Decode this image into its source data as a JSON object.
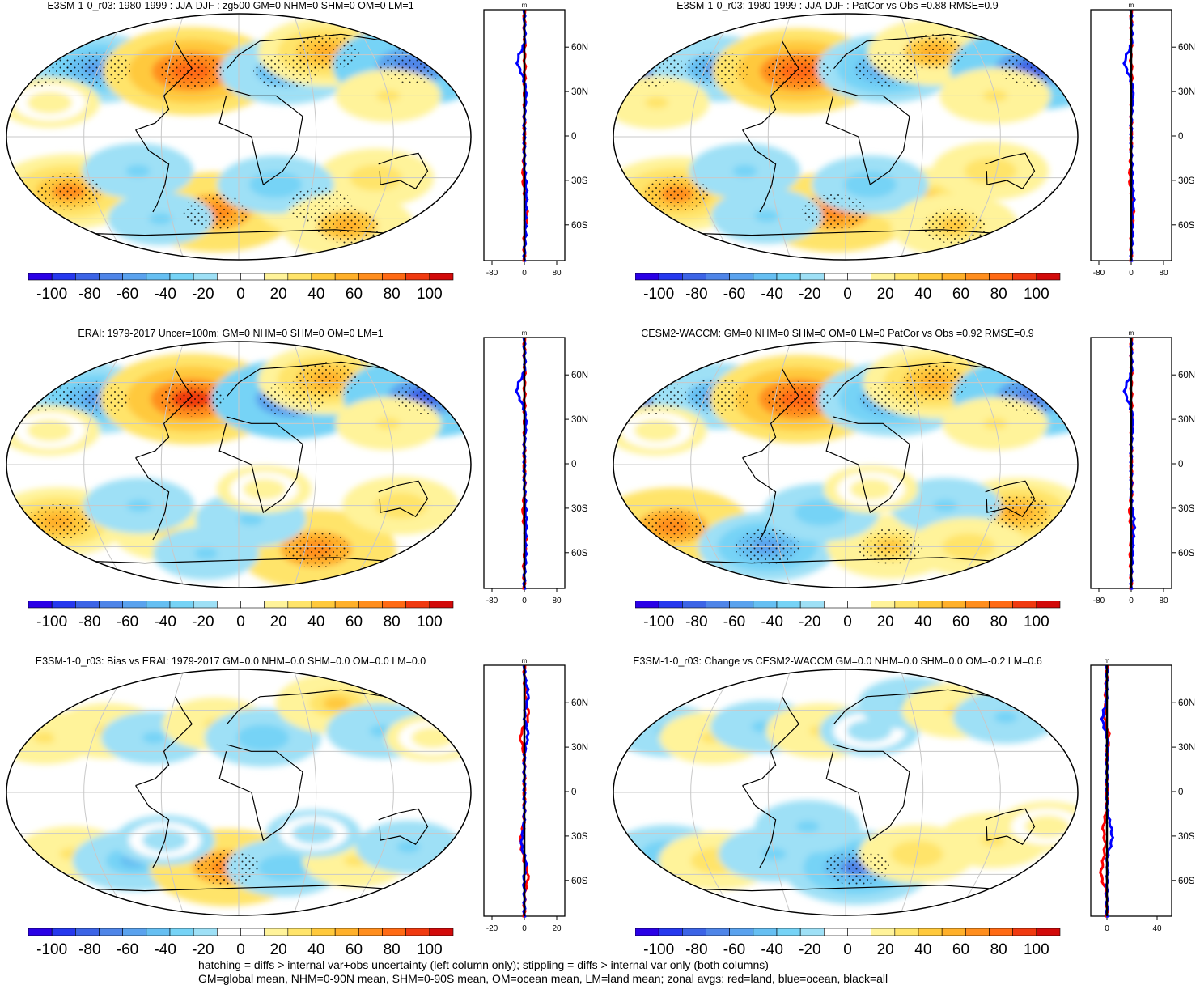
{
  "panels": [
    {
      "title": "E3SM-1-0_r03: 1980-1999 : JJA-DJF : zg500 GM=0 NHM=0 SHM=0 OM=0 LM=1",
      "zonal_xticks": [
        "-80",
        "0",
        "80"
      ],
      "blobs": [
        {
          "lon": -170,
          "lat": 50,
          "v": -90
        },
        {
          "lon": -120,
          "lat": 50,
          "v": -60
        },
        {
          "lon": -40,
          "lat": 48,
          "v": 95
        },
        {
          "lon": 40,
          "lat": 48,
          "v": -55
        },
        {
          "lon": 80,
          "lat": 62,
          "v": 60
        },
        {
          "lon": 150,
          "lat": 52,
          "v": -80
        },
        {
          "lon": 120,
          "lat": 30,
          "v": 30
        },
        {
          "lon": -150,
          "lat": 25,
          "v": 25
        },
        {
          "lon": -140,
          "lat": -40,
          "v": 70
        },
        {
          "lon": -20,
          "lat": -55,
          "v": 80
        },
        {
          "lon": 70,
          "lat": -50,
          "v": 50
        },
        {
          "lon": 110,
          "lat": -30,
          "v": 40
        },
        {
          "lon": -80,
          "lat": -25,
          "v": -35
        },
        {
          "lon": 30,
          "lat": -35,
          "v": -40
        },
        {
          "lon": 100,
          "lat": -65,
          "v": 55
        },
        {
          "lon": -70,
          "lat": -60,
          "v": -30
        }
      ]
    },
    {
      "title": "E3SM-1-0_r03: 1980-1999 : JJA-DJF : PatCor vs Obs =0.88 RMSE=0.9",
      "zonal_xticks": [
        "-80",
        "0",
        "80"
      ],
      "blobs": [
        {
          "lon": -165,
          "lat": 50,
          "v": -80
        },
        {
          "lon": -110,
          "lat": 50,
          "v": -55
        },
        {
          "lon": -40,
          "lat": 48,
          "v": 90
        },
        {
          "lon": 35,
          "lat": 50,
          "v": -60
        },
        {
          "lon": 80,
          "lat": 62,
          "v": 55
        },
        {
          "lon": 160,
          "lat": 50,
          "v": -85
        },
        {
          "lon": 120,
          "lat": 30,
          "v": 35
        },
        {
          "lon": -150,
          "lat": 25,
          "v": 30
        },
        {
          "lon": -140,
          "lat": -42,
          "v": 70
        },
        {
          "lon": -10,
          "lat": -55,
          "v": 80
        },
        {
          "lon": 70,
          "lat": -45,
          "v": 45
        },
        {
          "lon": 115,
          "lat": -25,
          "v": 40
        },
        {
          "lon": -80,
          "lat": -25,
          "v": -35
        },
        {
          "lon": 20,
          "lat": -35,
          "v": -40
        },
        {
          "lon": 100,
          "lat": -65,
          "v": 50
        },
        {
          "lon": -70,
          "lat": -58,
          "v": -35
        }
      ]
    },
    {
      "title": "ERAI: 1979-2017 Uncer=100m: GM=0 NHM=0 SHM=0 OM=0 LM=1",
      "zonal_xticks": [
        "-80",
        "0",
        "80"
      ],
      "blobs": [
        {
          "lon": -170,
          "lat": 52,
          "v": -95
        },
        {
          "lon": -120,
          "lat": 48,
          "v": -60
        },
        {
          "lon": -40,
          "lat": 48,
          "v": 100
        },
        {
          "lon": 45,
          "lat": 48,
          "v": -80
        },
        {
          "lon": 80,
          "lat": 62,
          "v": 60
        },
        {
          "lon": 160,
          "lat": 50,
          "v": -85
        },
        {
          "lon": 120,
          "lat": 30,
          "v": 30
        },
        {
          "lon": -150,
          "lat": 25,
          "v": 25
        },
        {
          "lon": -150,
          "lat": -42,
          "v": 60
        },
        {
          "lon": -60,
          "lat": -50,
          "v": 35
        },
        {
          "lon": 70,
          "lat": -62,
          "v": 80
        },
        {
          "lon": 130,
          "lat": -30,
          "v": 40
        },
        {
          "lon": -80,
          "lat": -30,
          "v": -35
        },
        {
          "lon": 10,
          "lat": -40,
          "v": -35
        },
        {
          "lon": -30,
          "lat": -65,
          "v": -30
        },
        {
          "lon": 20,
          "lat": -18,
          "v": 20
        }
      ]
    },
    {
      "title": "CESM2-WACCM: GM=0 NHM=0 SHM=0 OM=0 LM=0 PatCor vs Obs =0.92 RMSE=0.9",
      "zonal_xticks": [
        "-80",
        "0",
        "80"
      ],
      "blobs": [
        {
          "lon": -165,
          "lat": 50,
          "v": -80
        },
        {
          "lon": -110,
          "lat": 50,
          "v": -55
        },
        {
          "lon": -40,
          "lat": 48,
          "v": 95
        },
        {
          "lon": 40,
          "lat": 48,
          "v": -70
        },
        {
          "lon": 80,
          "lat": 60,
          "v": 65
        },
        {
          "lon": 160,
          "lat": 50,
          "v": -80
        },
        {
          "lon": 120,
          "lat": 30,
          "v": 30
        },
        {
          "lon": -150,
          "lat": 25,
          "v": 25
        },
        {
          "lon": -145,
          "lat": -45,
          "v": 75
        },
        {
          "lon": -70,
          "lat": -60,
          "v": -60
        },
        {
          "lon": 40,
          "lat": -60,
          "v": 50
        },
        {
          "lon": 140,
          "lat": -35,
          "v": 60
        },
        {
          "lon": -20,
          "lat": -35,
          "v": -40
        },
        {
          "lon": 80,
          "lat": -30,
          "v": -35
        },
        {
          "lon": 110,
          "lat": -60,
          "v": 40
        },
        {
          "lon": 20,
          "lat": -18,
          "v": 20
        }
      ]
    },
    {
      "title": "E3SM-1-0_r03: Bias vs ERAI: 1979-2017 GM=0.0 NHM=0.0 SHM=0.0 OM=0.0 LM=0.0",
      "zonal_xticks": [
        "-20",
        "0",
        "20"
      ],
      "blobs": [
        {
          "lon": -160,
          "lat": 40,
          "v": 30
        },
        {
          "lon": -110,
          "lat": 45,
          "v": 35
        },
        {
          "lon": -70,
          "lat": 40,
          "v": -30
        },
        {
          "lon": -20,
          "lat": 50,
          "v": 30
        },
        {
          "lon": 20,
          "lat": 40,
          "v": -40
        },
        {
          "lon": 90,
          "lat": 65,
          "v": 45
        },
        {
          "lon": 120,
          "lat": 45,
          "v": -35
        },
        {
          "lon": 160,
          "lat": 40,
          "v": 20
        },
        {
          "lon": -140,
          "lat": -45,
          "v": 35
        },
        {
          "lon": -90,
          "lat": -50,
          "v": -45
        },
        {
          "lon": -10,
          "lat": -55,
          "v": 75
        },
        {
          "lon": 40,
          "lat": -55,
          "v": -40
        },
        {
          "lon": 100,
          "lat": -50,
          "v": 30
        },
        {
          "lon": 140,
          "lat": -40,
          "v": -30
        },
        {
          "lon": -60,
          "lat": -35,
          "v": -25
        },
        {
          "lon": 60,
          "lat": -30,
          "v": -20
        }
      ]
    },
    {
      "title": "E3SM-1-0_r03: Change vs CESM2-WACCM GM=0.0 NHM=0.0 SHM=0.0 OM=-0.2 LM=0.6",
      "zonal_xticks": [
        "0",
        "40"
      ],
      "blobs": [
        {
          "lon": -150,
          "lat": 45,
          "v": -30
        },
        {
          "lon": -110,
          "lat": 40,
          "v": 30
        },
        {
          "lon": -70,
          "lat": 48,
          "v": -30
        },
        {
          "lon": -20,
          "lat": 45,
          "v": 35
        },
        {
          "lon": 20,
          "lat": 45,
          "v": -25
        },
        {
          "lon": 60,
          "lat": 65,
          "v": -30
        },
        {
          "lon": 100,
          "lat": 60,
          "v": 35
        },
        {
          "lon": 140,
          "lat": 55,
          "v": -30
        },
        {
          "lon": -150,
          "lat": -45,
          "v": -40
        },
        {
          "lon": -110,
          "lat": -50,
          "v": 40
        },
        {
          "lon": -60,
          "lat": -45,
          "v": -35
        },
        {
          "lon": 10,
          "lat": -55,
          "v": -70
        },
        {
          "lon": 60,
          "lat": -45,
          "v": 40
        },
        {
          "lon": 120,
          "lat": -35,
          "v": 35
        },
        {
          "lon": -30,
          "lat": -25,
          "v": -30
        },
        {
          "lon": 160,
          "lat": -25,
          "v": 25
        }
      ]
    }
  ],
  "colorbar": {
    "colors": [
      "#2a00e6",
      "#2638ee",
      "#3c64e6",
      "#4f85e8",
      "#5aa2ee",
      "#66bff2",
      "#76d3f6",
      "#9ee0f6",
      "#ffffff",
      "#ffffff",
      "#fff39a",
      "#ffe46a",
      "#ffc93c",
      "#ffb02a",
      "#ff8e1e",
      "#ff6a14",
      "#f03a10",
      "#d20a0a"
    ],
    "labels": [
      "-100",
      "-80",
      "-60",
      "-40",
      "-20",
      "0",
      "20",
      "40",
      "60",
      "80",
      "100"
    ]
  },
  "zonal_ylabels": [
    "60N",
    "30N",
    "0",
    "30S",
    "60S"
  ],
  "zonal_unit": "m",
  "footer": {
    "line1": "hatching = diffs > internal var+obs uncertainty (left column only); stippling = diffs > internal var only (both columns)",
    "line2": "GM=global mean, NHM=0-90N mean, SHM=0-90S mean, OM=ocean mean, LM=land mean; zonal avgs: red=land, blue=ocean, black=all"
  },
  "chart_data": [
    {
      "type": "heatmap",
      "title": "E3SM-1-0_r03: 1980-1999 : JJA-DJF : zg500 GM=0 NHM=0 SHM=0 OM=0 LM=1",
      "colorbar_range": [
        -100,
        100
      ]
    },
    {
      "type": "heatmap",
      "title": "E3SM-1-0_r03: 1980-1999 : JJA-DJF : PatCor vs Obs =0.88 RMSE=0.9",
      "colorbar_range": [
        -100,
        100
      ]
    },
    {
      "type": "heatmap",
      "title": "ERAI: 1979-2017 Uncer=100m: GM=0 NHM=0 SHM=0 OM=0 LM=1",
      "colorbar_range": [
        -100,
        100
      ]
    },
    {
      "type": "heatmap",
      "title": "CESM2-WACCM: GM=0 NHM=0 SHM=0 OM=0 LM=0 PatCor vs Obs =0.92 RMSE=0.9",
      "colorbar_range": [
        -100,
        100
      ]
    },
    {
      "type": "heatmap",
      "title": "E3SM-1-0_r03: Bias vs ERAI: 1979-2017 GM=0.0 NHM=0.0 SHM=0.0 OM=0.0 LM=0.0",
      "colorbar_range": [
        -100,
        100
      ]
    },
    {
      "type": "heatmap",
      "title": "E3SM-1-0_r03: Change vs CESM2-WACCM GM=0.0 NHM=0.0 SHM=0.0 OM=-0.2 LM=0.6",
      "colorbar_range": [
        -100,
        100
      ]
    }
  ]
}
